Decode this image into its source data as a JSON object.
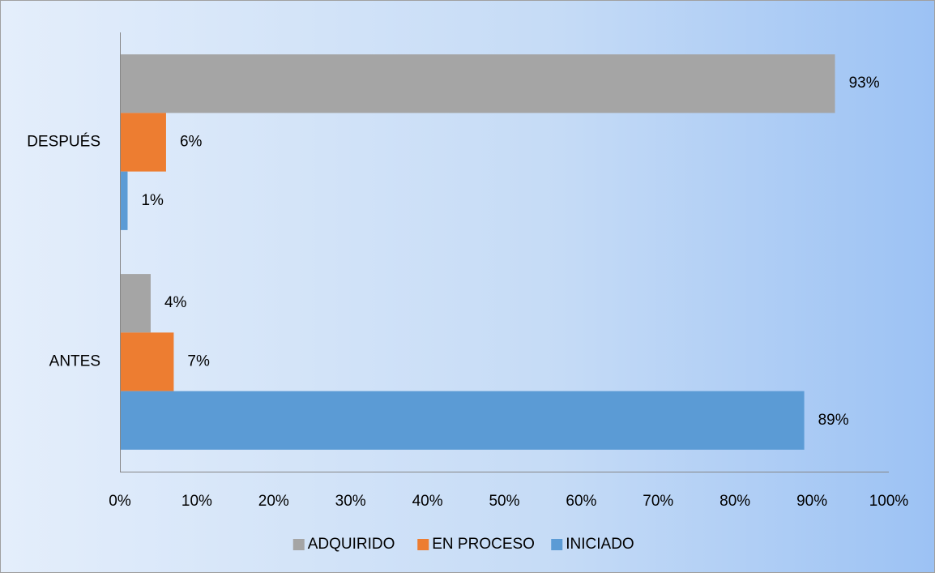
{
  "chart_data": {
    "type": "barh",
    "categories": [
      "ANTES",
      "DESPUÉS"
    ],
    "series": [
      {
        "name": "ADQUIRIDO",
        "color": "#a5a5a5",
        "values": [
          4,
          93
        ],
        "value_labels": [
          "4%",
          "93%"
        ]
      },
      {
        "name": "EN PROCESO",
        "color": "#ed7d31",
        "values": [
          7,
          6
        ],
        "value_labels": [
          "7%",
          "6%"
        ]
      },
      {
        "name": "INICIADO",
        "color": "#5b9bd5",
        "values": [
          89,
          1
        ],
        "value_labels": [
          "89%",
          "1%"
        ]
      }
    ],
    "xlim": [
      0,
      100
    ],
    "xticks": [
      {
        "value": 0,
        "label": "0%"
      },
      {
        "value": 10,
        "label": "10%"
      },
      {
        "value": 20,
        "label": "20%"
      },
      {
        "value": 30,
        "label": "30%"
      },
      {
        "value": 40,
        "label": "40%"
      },
      {
        "value": 50,
        "label": "50%"
      },
      {
        "value": 60,
        "label": "60%"
      },
      {
        "value": 70,
        "label": "70%"
      },
      {
        "value": 80,
        "label": "80%"
      },
      {
        "value": 90,
        "label": "90%"
      },
      {
        "value": 100,
        "label": "100%"
      }
    ],
    "grid": false,
    "legend": "bottom"
  }
}
